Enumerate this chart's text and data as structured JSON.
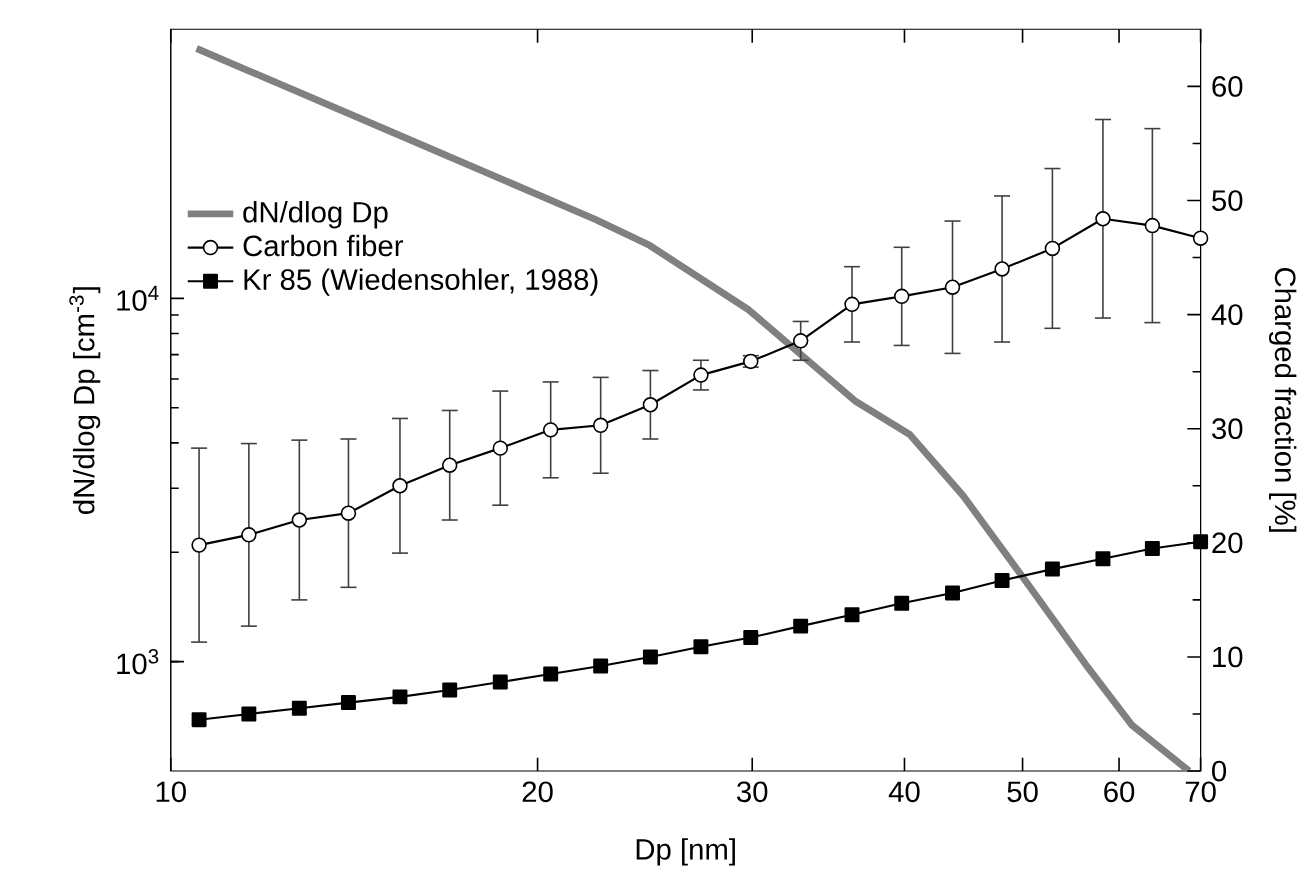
{
  "chart_data": {
    "type": "line",
    "xlabel": "Dp [nm]",
    "ylabel": "dN/dlog Dp [cm$^{-3}$]",
    "y2label": "Charged fraction [%]",
    "log": "xy",
    "legend": "top left",
    "grid": false,
    "xlim": [
      10,
      70
    ],
    "xticks": [
      10,
      20,
      30,
      40,
      50,
      60,
      70
    ],
    "ylim": [
      500,
      55000
    ],
    "yticks": [
      {
        "value": 1000,
        "label": "10$^{3}$"
      },
      {
        "value": 10000,
        "label": "10$^{4}$"
      }
    ],
    "y2lim": [
      0,
      65
    ],
    "y2ticks": [
      0,
      10,
      20,
      30,
      40,
      50,
      60
    ],
    "series": [
      {
        "name": "dN/dlog Dp",
        "color": "#808080",
        "marker": "none",
        "x": [
          10.5,
          15,
          22.3,
          24.7,
          29.8,
          36.5,
          40.4,
          44.7,
          50.2,
          56.3,
          61.5,
          68.5
        ],
        "values": [
          48700,
          29200,
          16500,
          14000,
          9300,
          5200,
          4220,
          2860,
          1680,
          985,
          668,
          500
        ]
      },
      {
        "name": "Carbon fiber",
        "color": "#000000",
        "marker": "circle",
        "axis": "y2",
        "x": [
          10.55,
          11.59,
          12.75,
          13.99,
          15.42,
          16.94,
          18.64,
          20.5,
          22.53,
          24.75,
          27.23,
          29.92,
          32.88,
          36.23,
          39.8,
          43.8,
          48.1,
          52.9,
          58.2,
          63.9,
          70
        ],
        "values": [
          19.8,
          20.7,
          22.0,
          22.6,
          25.0,
          26.8,
          28.3,
          29.9,
          30.3,
          32.1,
          34.7,
          35.9,
          37.7,
          40.9,
          41.6,
          42.4,
          44.0,
          45.8,
          48.4,
          47.8,
          46.7
        ],
        "errors": [
          8.5,
          8,
          7,
          6.5,
          5.9,
          4.8,
          5,
          4.2,
          4.2,
          3,
          1.3,
          0.5,
          1.7,
          3.3,
          4.3,
          5.8,
          6.4,
          7,
          8.7,
          8.5,
          null
        ]
      },
      {
        "name": "Kr 85 (Wiedensohler, 1988)",
        "color": "#000000",
        "marker": "square",
        "axis": "y2",
        "x": [
          10.55,
          11.59,
          12.75,
          13.99,
          15.42,
          16.94,
          18.64,
          20.5,
          22.53,
          24.75,
          27.23,
          29.92,
          32.88,
          36.23,
          39.8,
          43.8,
          48.1,
          52.9,
          58.2,
          63.9,
          70
        ],
        "values": [
          4.5,
          5.0,
          5.5,
          6.0,
          6.5,
          7.1,
          7.8,
          8.5,
          9.2,
          10.0,
          10.9,
          11.7,
          12.7,
          13.7,
          14.7,
          15.6,
          16.7,
          17.7,
          18.6,
          19.5,
          20.1
        ]
      }
    ]
  }
}
